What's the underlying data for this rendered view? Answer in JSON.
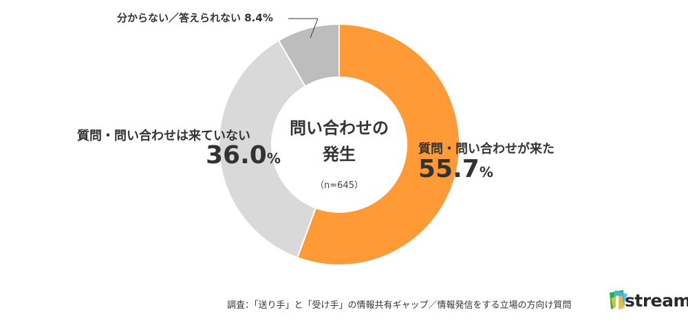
{
  "chart_data": {
    "type": "pie",
    "title": "問い合わせの発生",
    "title_lines": [
      "問い合わせの",
      "発生"
    ],
    "sample": "（n=645）",
    "unit": "%",
    "slices": [
      {
        "name": "質問・問い合わせが来た",
        "value": 55.7,
        "value_text": "55.7",
        "color": "#ff9a36"
      },
      {
        "name": "質問・問い合わせは来ていない",
        "value": 36.0,
        "value_text": "36.0",
        "color": "#d9d9d9"
      },
      {
        "name": "分からない／答えられない",
        "value": 8.4,
        "value_text": "8.4",
        "color": "#bdbdbd"
      }
    ],
    "legend": "none"
  },
  "footer": "調査：「送り手」と「受け手」の情報共有ギャップ／情報発信をする立場の方向け質問",
  "logo": {
    "text": "stream",
    "letter": "J"
  }
}
